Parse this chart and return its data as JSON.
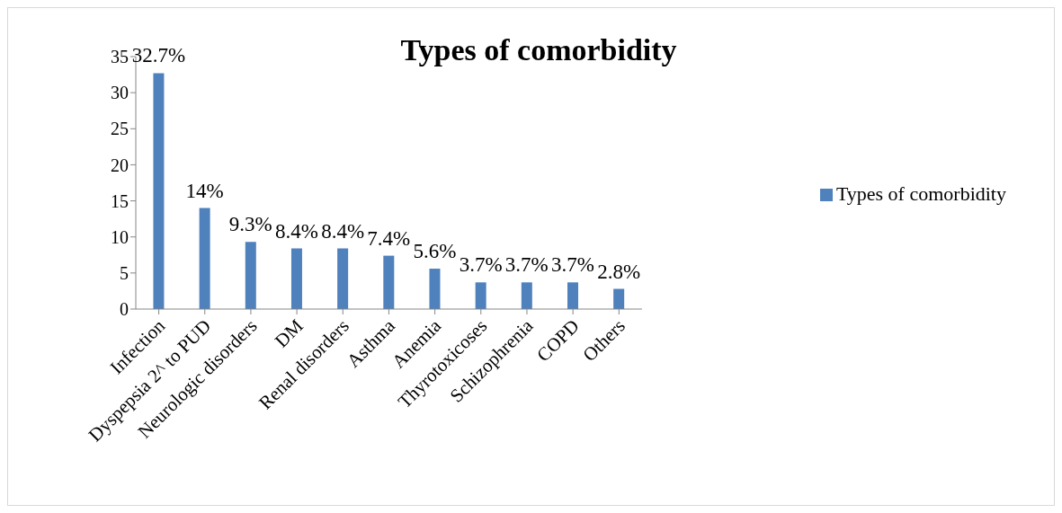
{
  "chart_data": {
    "type": "bar",
    "title": "Types of comorbidity",
    "categories": [
      "Infection",
      "Dyspepsia 2^ to PUD",
      "Neurologic disorders",
      "DM",
      "Renal disorders",
      "Asthma",
      "Anemia",
      "Thyrotoxicoses",
      "Schizophrenia",
      "COPD",
      "Others"
    ],
    "series": [
      {
        "name": "Types of comorbidity",
        "color": "#4f81bd",
        "values": [
          32.7,
          14,
          9.3,
          8.4,
          8.4,
          7.4,
          5.6,
          3.7,
          3.7,
          3.7,
          2.8
        ],
        "value_labels": [
          "32.7%",
          "14%",
          "9.3%",
          "8.4%",
          "8.4%",
          "7.4%",
          "5.6%",
          "3.7%",
          "3.7%",
          "3.7%",
          "2.8%"
        ]
      }
    ],
    "ylim": [
      0,
      35
    ],
    "yticks": [
      0,
      5,
      10,
      15,
      20,
      25,
      30,
      35
    ],
    "grid": false,
    "legend": "right"
  }
}
